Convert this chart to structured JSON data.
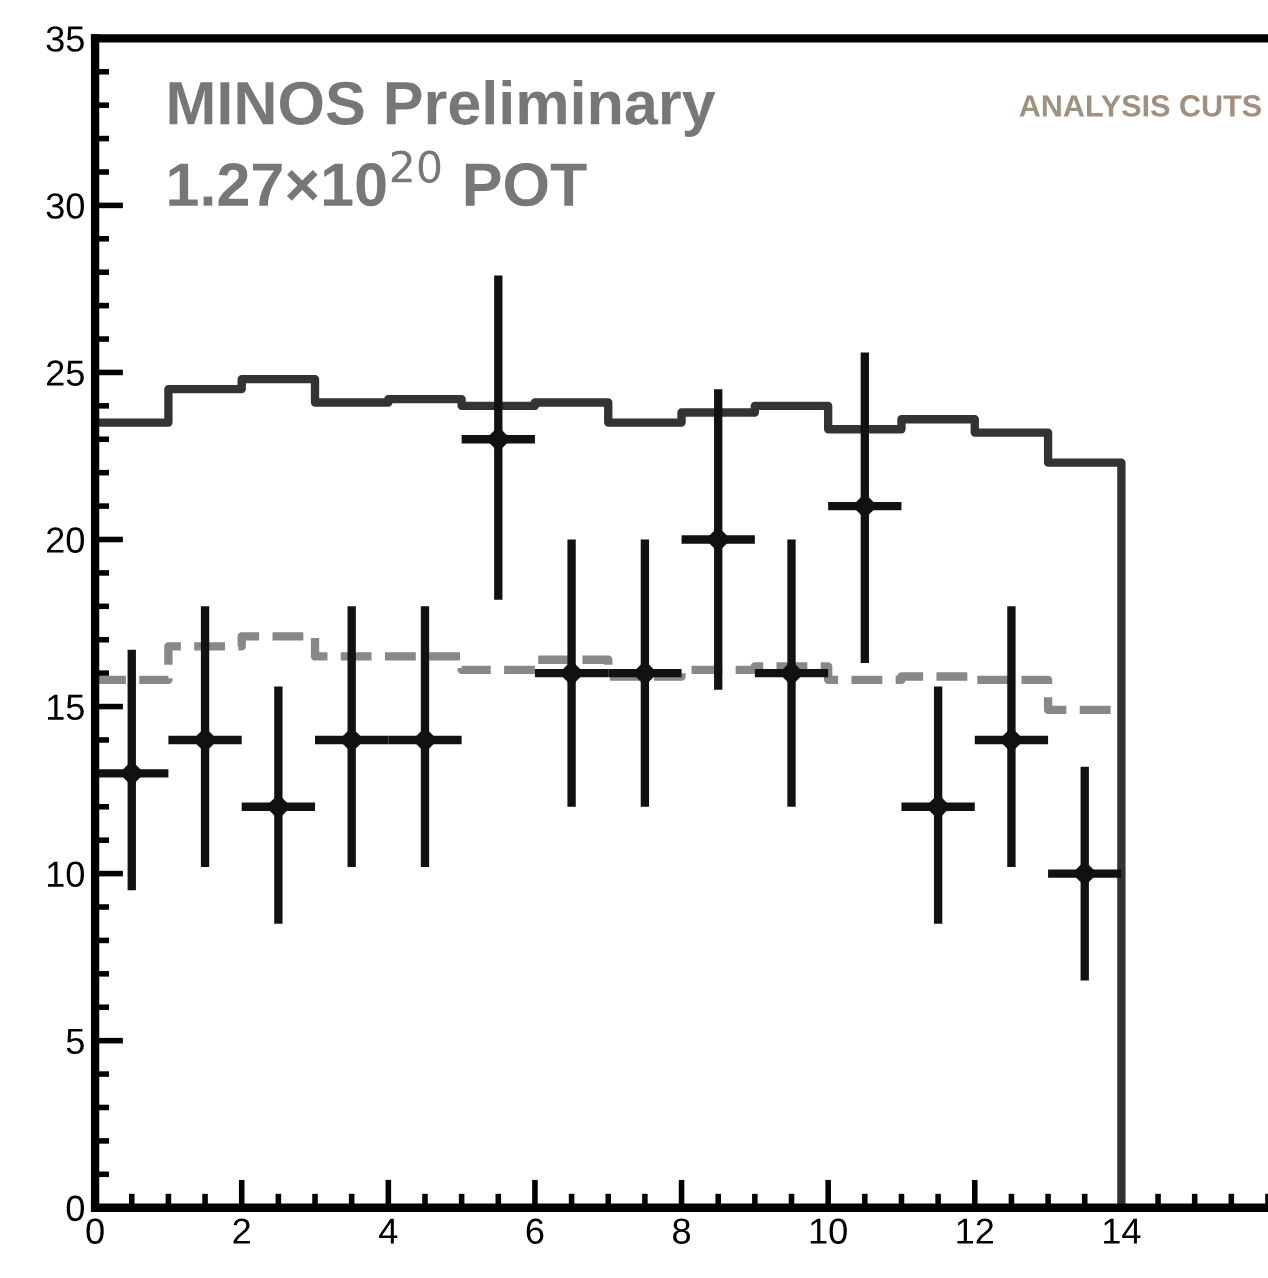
{
  "chart_data": {
    "type": "step",
    "annotations": [
      "MINOS Preliminary",
      "1.27×10$^{20}$ POT",
      "ANALYSIS CUTS"
    ],
    "xlim": [
      0,
      16
    ],
    "ylim": [
      0,
      35
    ],
    "xticks": [
      0,
      2,
      4,
      6,
      8,
      10,
      12,
      14
    ],
    "yticks": [
      0,
      5,
      10,
      15,
      20,
      25,
      30,
      35
    ],
    "grid": false,
    "legend": false,
    "series": [
      {
        "color": "#333333",
        "line_style": "solid",
        "x": [
          0,
          1,
          2,
          3,
          4,
          5,
          6,
          7,
          8,
          9,
          10,
          11,
          12,
          13,
          14
        ],
        "values": [
          23.5,
          24.5,
          24.8,
          24.1,
          24.2,
          24.0,
          24.1,
          23.5,
          23.8,
          24.0,
          23.3,
          23.6,
          23.2,
          22.3,
          0
        ]
      },
      {
        "color": "#888888",
        "line_style": "dashed",
        "x": [
          0,
          1,
          2,
          3,
          4,
          5,
          6,
          7,
          8,
          9,
          10,
          11,
          12,
          13,
          14
        ],
        "values": [
          15.8,
          16.8,
          17.1,
          16.5,
          16.5,
          16.1,
          16.4,
          15.9,
          16.1,
          16.2,
          15.8,
          15.9,
          15.8,
          14.9,
          14.9
        ]
      },
      {
        "type": "scatter",
        "color": "#111111",
        "marker": "diamond",
        "x": [
          0.5,
          1.5,
          2.5,
          3.5,
          4.5,
          5.5,
          6.5,
          7.5,
          8.5,
          9.5,
          10.5,
          11.5,
          12.5,
          13.5
        ],
        "values": [
          13,
          14,
          12,
          14,
          14,
          23,
          16,
          16,
          20,
          16,
          21,
          12,
          14,
          10
        ],
        "errors": [
          [
            9.5,
            16.7
          ],
          [
            10.2,
            18
          ],
          [
            8.5,
            15.6
          ],
          [
            10.2,
            18
          ],
          [
            10.2,
            18
          ],
          [
            18.2,
            27.9
          ],
          [
            12,
            20
          ],
          [
            12,
            20
          ],
          [
            15.5,
            24.5
          ],
          [
            12,
            20
          ],
          [
            16.3,
            25.6
          ],
          [
            8.5,
            15.6
          ],
          [
            10.2,
            18
          ],
          [
            6.8,
            13.2
          ]
        ],
        "xerrors": [
          0.5,
          0.5,
          0.5,
          0.5,
          0.5,
          0.5,
          0.5,
          0.5,
          0.5,
          0.5,
          0.5,
          0.5,
          0.5,
          0.5
        ]
      }
    ]
  }
}
